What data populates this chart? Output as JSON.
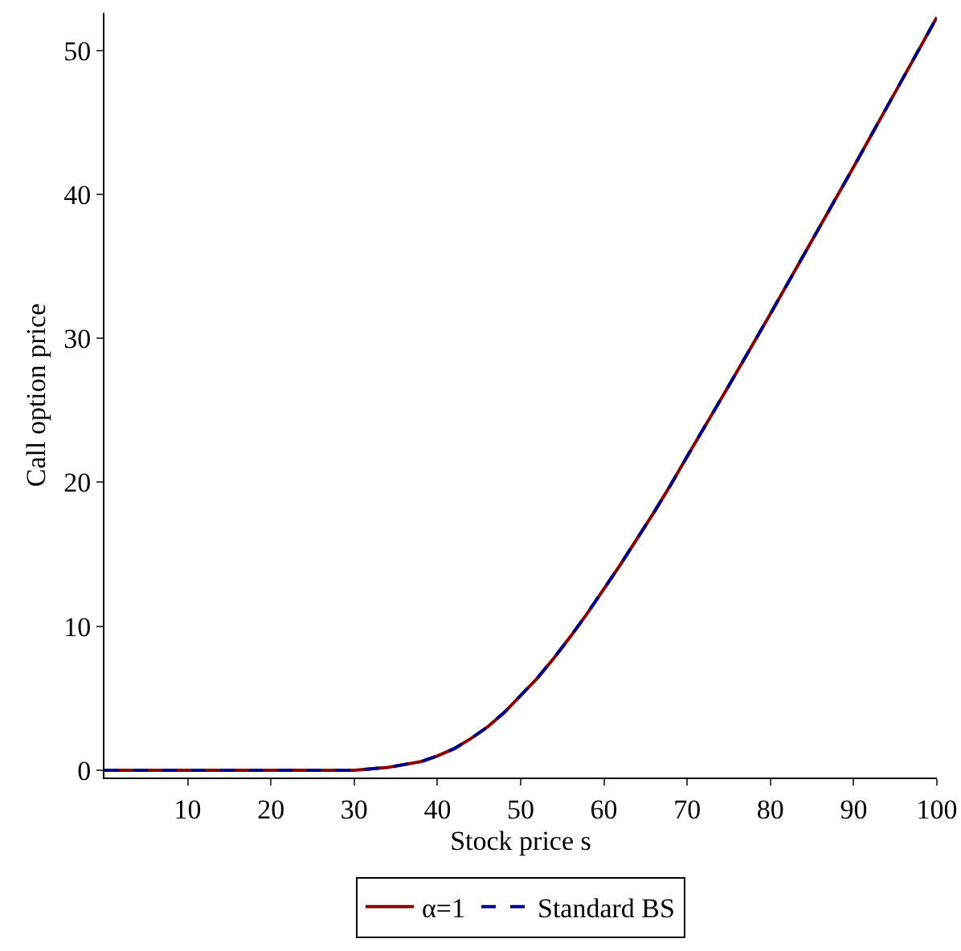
{
  "chart_data": {
    "type": "line",
    "xlabel": "Stock price s",
    "ylabel": "Call option price",
    "x": [
      0,
      5,
      10,
      15,
      20,
      25,
      30,
      32,
      34,
      36,
      38,
      40,
      42,
      44,
      46,
      48,
      50,
      52,
      54,
      56,
      58,
      60,
      62,
      64,
      66,
      68,
      70,
      75,
      80,
      85,
      90,
      95,
      100
    ],
    "series": [
      {
        "name": "α=1",
        "color": "#8b0000",
        "line_style": "solid",
        "values": [
          0,
          0,
          0,
          0,
          0,
          0,
          0,
          0.1,
          0.2,
          0.4,
          0.6,
          1.0,
          1.5,
          2.2,
          3.0,
          4.0,
          5.2,
          6.4,
          7.8,
          9.3,
          10.9,
          12.6,
          14.3,
          16.1,
          17.9,
          19.8,
          21.8,
          26.7,
          31.7,
          36.8,
          41.9,
          47.1,
          52.3
        ]
      },
      {
        "name": "Standard BS",
        "color": "#00008b",
        "line_style": "dashed",
        "values": [
          0,
          0,
          0,
          0,
          0,
          0,
          0,
          0.1,
          0.2,
          0.4,
          0.6,
          1.0,
          1.5,
          2.2,
          3.0,
          4.0,
          5.2,
          6.4,
          7.8,
          9.3,
          10.9,
          12.6,
          14.3,
          16.1,
          17.9,
          19.8,
          21.8,
          26.7,
          31.7,
          36.8,
          41.9,
          47.1,
          52.3
        ]
      }
    ],
    "xlim": [
      0,
      100
    ],
    "xticks": [
      10,
      20,
      30,
      40,
      50,
      60,
      70,
      80,
      90,
      100
    ],
    "ylim": [
      -0.5,
      52.6
    ],
    "yticks": [
      0,
      10,
      20,
      30,
      40,
      50
    ],
    "grid": false,
    "legend": "bottom",
    "marker": "none"
  }
}
